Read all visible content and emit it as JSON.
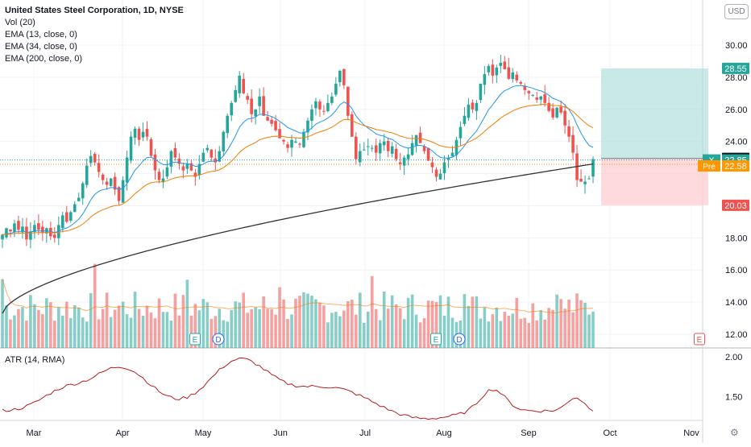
{
  "legend": {
    "title": "United States Steel Corporation, 1D, NYSE",
    "vol": "Vol (20)",
    "ema13": "EMA (13, close, 0)",
    "ema34": "EMA (34, close, 0)",
    "ema200": "EMA (200, close, 0)",
    "atr": "ATR (14, RMA)"
  },
  "currency_button": "USD",
  "colors": {
    "up": "#26a69a",
    "down": "#ef5350",
    "ema13": "#2196f3",
    "ema34": "#f57c00",
    "ema200": "#333333",
    "atr": "#b71c1c",
    "target_zone": "#b2dfdb",
    "stop_zone": "#ffcdd2"
  },
  "chart_data": {
    "type": "candlestick",
    "x_labels": [
      "Mar",
      "Apr",
      "May",
      "Jun",
      "Jul",
      "Aug",
      "Sep",
      "Oct",
      "Nov"
    ],
    "price_axis": {
      "ticks": [
        "30.00",
        "28.00",
        "26.00",
        "24.00",
        "18.00",
        "16.00",
        "14.00",
        "12.00"
      ],
      "ylim": [
        11.5,
        31.5
      ],
      "labels": [
        {
          "text": "28.55",
          "value": 28.55,
          "color": "#26a69a"
        },
        {
          "text": "22.95",
          "value": 22.95,
          "color": "#131722"
        },
        {
          "text": "22.85",
          "value": 22.85,
          "color": "#26a69a",
          "tag": "X"
        },
        {
          "text": "22.58",
          "value": 22.58,
          "color": "#ff9800",
          "tag": "Pre"
        },
        {
          "text": "20.03",
          "value": 20.03,
          "color": "#ef5350"
        }
      ]
    },
    "atr_axis": {
      "ticks": [
        "2.00",
        "1.50"
      ],
      "ylim": [
        1.2,
        2.05
      ]
    },
    "position": {
      "entry": 22.95,
      "target": 28.55,
      "stop": 20.03
    },
    "events": [
      {
        "label": "E",
        "color": "#26a69a"
      },
      {
        "label": "D",
        "color": "#2962ff"
      },
      {
        "label": "E",
        "color": "#26a69a"
      },
      {
        "label": "D",
        "color": "#2962ff"
      },
      {
        "label": "E",
        "color": "#ef5350"
      }
    ],
    "ohlc_close": [
      18.2,
      18.6,
      18.4,
      18.9,
      18.5,
      18.7,
      17.9,
      18.4,
      18.8,
      18.5,
      18.3,
      18.6,
      18.1,
      18.0,
      18.8,
      19.4,
      19.0,
      19.6,
      20.1,
      20.5,
      21.4,
      22.5,
      23.1,
      22.7,
      22.1,
      21.6,
      21.3,
      21.7,
      21.0,
      20.3,
      21.6,
      23.0,
      24.3,
      24.8,
      24.1,
      24.6,
      24.3,
      23.1,
      22.2,
      21.6,
      21.7,
      22.4,
      23.4,
      23.0,
      22.6,
      22.2,
      22.6,
      22.2,
      21.8,
      22.6,
      23.3,
      23.6,
      23.0,
      22.7,
      23.4,
      24.6,
      25.6,
      26.4,
      27.2,
      28.1,
      27.0,
      26.6,
      25.7,
      26.0,
      26.8,
      25.6,
      25.3,
      25.1,
      24.7,
      24.2,
      24.0,
      23.6,
      24.1,
      24.0,
      23.8,
      24.6,
      25.3,
      26.0,
      26.5,
      26.0,
      25.9,
      26.4,
      26.8,
      27.6,
      28.4,
      27.5,
      25.6,
      24.3,
      22.9,
      23.4,
      23.5,
      23.7,
      23.6,
      23.3,
      23.9,
      24.0,
      23.4,
      23.7,
      22.9,
      22.6,
      23.0,
      23.2,
      23.9,
      24.4,
      23.9,
      23.4,
      22.8,
      22.4,
      21.8,
      22.0,
      22.7,
      23.0,
      23.3,
      24.1,
      24.9,
      25.6,
      26.3,
      26.0,
      26.4,
      27.6,
      28.2,
      28.7,
      28.1,
      28.6,
      28.9,
      28.5,
      27.9,
      28.3,
      27.8,
      27.6,
      27.2,
      27.0,
      26.9,
      26.6,
      26.8,
      26.4,
      25.9,
      25.5,
      26.1,
      25.8,
      25.0,
      24.3,
      23.3,
      21.6,
      21.5,
      21.5,
      21.7,
      22.9
    ]
  }
}
